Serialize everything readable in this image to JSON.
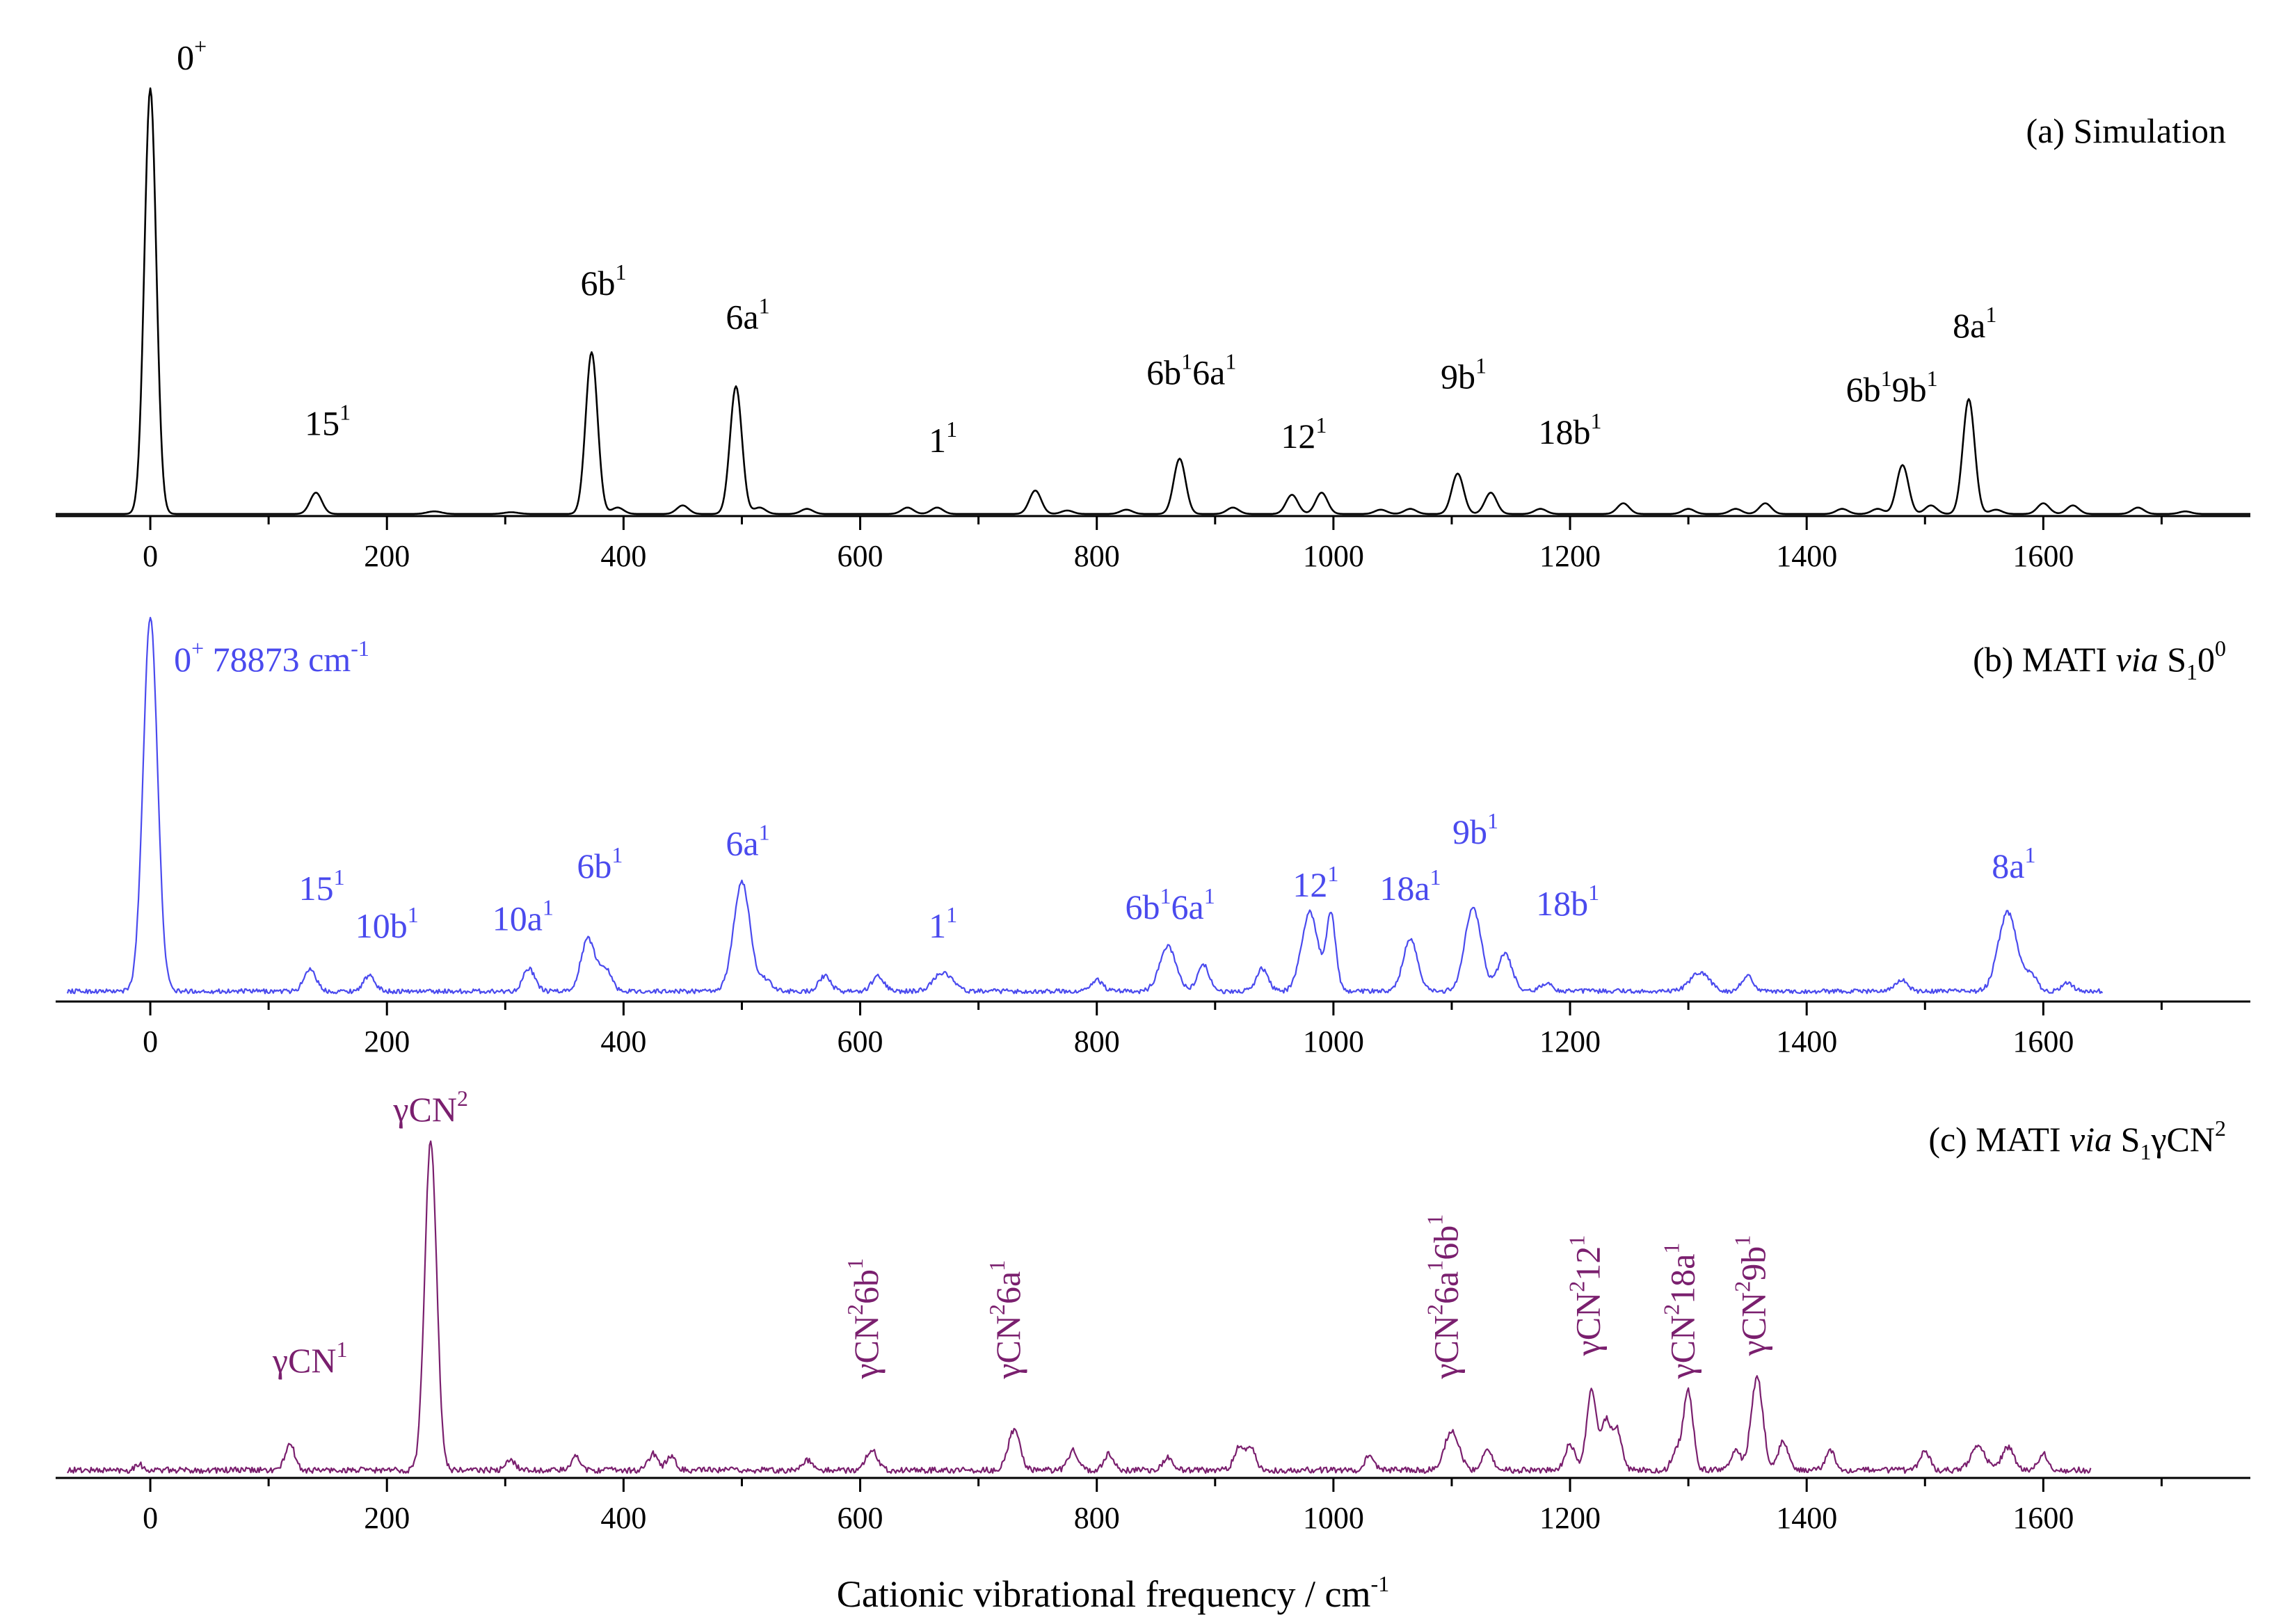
{
  "figure": {
    "xlabel": "Cationic vibrational frequency / cm",
    "xlabel_sup": "-1"
  },
  "chart_data": [
    {
      "type": "line",
      "id": "a",
      "title": [
        {
          "t": "(a) Simulation"
        }
      ],
      "color": "#000000",
      "xlim": [
        -80,
        1775
      ],
      "ylim": [
        0,
        1.0
      ],
      "xticks": [
        0,
        200,
        400,
        600,
        800,
        1000,
        1200,
        1400,
        1600
      ],
      "x_range": [
        -80,
        1775
      ],
      "baseline": 0.005,
      "noise": 0,
      "peaks": [
        [
          0,
          1.0,
          5
        ],
        [
          140,
          0.05,
          5
        ],
        [
          240,
          0.006,
          6
        ],
        [
          305,
          0.004,
          6
        ],
        [
          373,
          0.38,
          5
        ],
        [
          395,
          0.015,
          5
        ],
        [
          450,
          0.02,
          5
        ],
        [
          495,
          0.3,
          5
        ],
        [
          515,
          0.015,
          5
        ],
        [
          555,
          0.012,
          5
        ],
        [
          640,
          0.015,
          5
        ],
        [
          665,
          0.015,
          5
        ],
        [
          748,
          0.055,
          5
        ],
        [
          775,
          0.008,
          5
        ],
        [
          825,
          0.01,
          5
        ],
        [
          870,
          0.13,
          5
        ],
        [
          915,
          0.015,
          5
        ],
        [
          965,
          0.045,
          5
        ],
        [
          990,
          0.05,
          5
        ],
        [
          1040,
          0.01,
          5
        ],
        [
          1065,
          0.012,
          5
        ],
        [
          1105,
          0.095,
          5
        ],
        [
          1133,
          0.05,
          5
        ],
        [
          1175,
          0.012,
          5
        ],
        [
          1245,
          0.025,
          5
        ],
        [
          1300,
          0.012,
          5
        ],
        [
          1340,
          0.012,
          5
        ],
        [
          1365,
          0.025,
          5
        ],
        [
          1430,
          0.012,
          5
        ],
        [
          1460,
          0.012,
          5
        ],
        [
          1481,
          0.115,
          5
        ],
        [
          1505,
          0.02,
          5
        ],
        [
          1537,
          0.27,
          5
        ],
        [
          1560,
          0.01,
          5
        ],
        [
          1600,
          0.025,
          5
        ],
        [
          1625,
          0.02,
          5
        ],
        [
          1680,
          0.015,
          5
        ],
        [
          1720,
          0.006,
          5
        ]
      ],
      "labels": [
        {
          "x": 35,
          "y": 1.05,
          "parts": [
            {
              "t": "0"
            },
            {
              "t": "+",
              "s": "sup"
            }
          ]
        },
        {
          "x": 150,
          "y": 0.19,
          "parts": [
            {
              "t": "15"
            },
            {
              "t": "1",
              "s": "sup"
            }
          ]
        },
        {
          "x": 383,
          "y": 0.52,
          "parts": [
            {
              "t": "6b"
            },
            {
              "t": "1",
              "s": "sup"
            }
          ]
        },
        {
          "x": 505,
          "y": 0.44,
          "parts": [
            {
              "t": "6a"
            },
            {
              "t": "1",
              "s": "sup"
            }
          ]
        },
        {
          "x": 670,
          "y": 0.15,
          "parts": [
            {
              "t": "1"
            },
            {
              "t": "1",
              "s": "sup"
            }
          ]
        },
        {
          "x": 880,
          "y": 0.31,
          "parts": [
            {
              "t": "6b"
            },
            {
              "t": "1",
              "s": "sup"
            },
            {
              "t": "6a"
            },
            {
              "t": "1",
              "s": "sup"
            }
          ]
        },
        {
          "x": 975,
          "y": 0.16,
          "parts": [
            {
              "t": "12"
            },
            {
              "t": "1",
              "s": "sup"
            }
          ]
        },
        {
          "x": 1110,
          "y": 0.3,
          "parts": [
            {
              "t": "9b"
            },
            {
              "t": "1",
              "s": "sup"
            }
          ]
        },
        {
          "x": 1200,
          "y": 0.17,
          "parts": [
            {
              "t": "18b"
            },
            {
              "t": "1",
              "s": "sup"
            }
          ]
        },
        {
          "x": 1472,
          "y": 0.27,
          "parts": [
            {
              "t": "6b"
            },
            {
              "t": "1",
              "s": "sup"
            },
            {
              "t": "9b"
            },
            {
              "t": "1",
              "s": "sup"
            }
          ]
        },
        {
          "x": 1542,
          "y": 0.42,
          "parts": [
            {
              "t": "8a"
            },
            {
              "t": "1",
              "s": "sup"
            }
          ]
        }
      ]
    },
    {
      "type": "line",
      "id": "b",
      "title": [
        {
          "t": "(b) MATI "
        },
        {
          "t": "via",
          "s": "it"
        },
        {
          "t": " S"
        },
        {
          "t": "1",
          "s": "sub"
        },
        {
          "t": "0"
        },
        {
          "t": "0",
          "s": "sup"
        }
      ],
      "color": "#4a4aee",
      "xlim": [
        -80,
        1775
      ],
      "ylim": [
        0,
        1.0
      ],
      "xticks": [
        0,
        200,
        400,
        600,
        800,
        1000,
        1200,
        1400,
        1600
      ],
      "x_range": [
        -70,
        1650
      ],
      "baseline": 0.025,
      "noise": 0.012,
      "peaks": [
        [
          0,
          1.0,
          6
        ],
        [
          135,
          0.06,
          5
        ],
        [
          185,
          0.04,
          5
        ],
        [
          320,
          0.06,
          5
        ],
        [
          370,
          0.14,
          6
        ],
        [
          385,
          0.06,
          5
        ],
        [
          500,
          0.29,
          7
        ],
        [
          520,
          0.03,
          5
        ],
        [
          570,
          0.04,
          5
        ],
        [
          615,
          0.04,
          5
        ],
        [
          670,
          0.05,
          8
        ],
        [
          800,
          0.03,
          5
        ],
        [
          860,
          0.12,
          7
        ],
        [
          890,
          0.07,
          5
        ],
        [
          940,
          0.06,
          5
        ],
        [
          980,
          0.21,
          7
        ],
        [
          998,
          0.2,
          4
        ],
        [
          1065,
          0.14,
          6
        ],
        [
          1118,
          0.22,
          7
        ],
        [
          1145,
          0.1,
          6
        ],
        [
          1180,
          0.02,
          5
        ],
        [
          1310,
          0.05,
          8
        ],
        [
          1350,
          0.04,
          5
        ],
        [
          1480,
          0.03,
          5
        ],
        [
          1570,
          0.21,
          8
        ],
        [
          1590,
          0.04,
          5
        ],
        [
          1620,
          0.02,
          5
        ]
      ],
      "labels": [
        {
          "x": 20,
          "y": 0.88,
          "anchor": "start",
          "parts": [
            {
              "t": "0"
            },
            {
              "t": "+",
              "s": "sup"
            },
            {
              "t": "  78873 cm"
            },
            {
              "t": "-1",
              "s": "sup"
            }
          ]
        },
        {
          "x": 145,
          "y": 0.27,
          "parts": [
            {
              "t": "15"
            },
            {
              "t": "1",
              "s": "sup"
            }
          ]
        },
        {
          "x": 200,
          "y": 0.17,
          "parts": [
            {
              "t": "10b"
            },
            {
              "t": "1",
              "s": "sup"
            }
          ]
        },
        {
          "x": 315,
          "y": 0.19,
          "parts": [
            {
              "t": "10a"
            },
            {
              "t": "1",
              "s": "sup"
            }
          ]
        },
        {
          "x": 380,
          "y": 0.33,
          "parts": [
            {
              "t": "6b"
            },
            {
              "t": "1",
              "s": "sup"
            }
          ]
        },
        {
          "x": 505,
          "y": 0.39,
          "parts": [
            {
              "t": "6a"
            },
            {
              "t": "1",
              "s": "sup"
            }
          ]
        },
        {
          "x": 670,
          "y": 0.17,
          "parts": [
            {
              "t": "1"
            },
            {
              "t": "1",
              "s": "sup"
            }
          ]
        },
        {
          "x": 862,
          "y": 0.22,
          "parts": [
            {
              "t": "6b"
            },
            {
              "t": "1",
              "s": "sup"
            },
            {
              "t": "6a"
            },
            {
              "t": "1",
              "s": "sup"
            }
          ]
        },
        {
          "x": 985,
          "y": 0.28,
          "parts": [
            {
              "t": "12"
            },
            {
              "t": "1",
              "s": "sup"
            }
          ]
        },
        {
          "x": 1065,
          "y": 0.27,
          "parts": [
            {
              "t": "18a"
            },
            {
              "t": "1",
              "s": "sup"
            }
          ]
        },
        {
          "x": 1120,
          "y": 0.42,
          "parts": [
            {
              "t": "9b"
            },
            {
              "t": "1",
              "s": "sup"
            }
          ]
        },
        {
          "x": 1198,
          "y": 0.23,
          "parts": [
            {
              "t": "18b"
            },
            {
              "t": "1",
              "s": "sup"
            }
          ]
        },
        {
          "x": 1575,
          "y": 0.33,
          "parts": [
            {
              "t": "8a"
            },
            {
              "t": "1",
              "s": "sup"
            }
          ]
        }
      ]
    },
    {
      "type": "line",
      "id": "c",
      "title": [
        {
          "t": "(c) MATI "
        },
        {
          "t": "via",
          "s": "it"
        },
        {
          "t": " S"
        },
        {
          "t": "1",
          "s": "sub"
        },
        {
          "t": "γCN"
        },
        {
          "t": "2",
          "s": "sup"
        }
      ],
      "color": "#7a1f6e",
      "xlim": [
        -80,
        1775
      ],
      "ylim": [
        0,
        1.0
      ],
      "xticks": [
        0,
        200,
        400,
        600,
        800,
        1000,
        1200,
        1400,
        1600
      ],
      "x_range": [
        -70,
        1640
      ],
      "baseline": 0.02,
      "noise": 0.018,
      "peaks": [
        [
          -10,
          0.02,
          3
        ],
        [
          118,
          0.08,
          4
        ],
        [
          237,
          1.0,
          5
        ],
        [
          305,
          0.03,
          4
        ],
        [
          360,
          0.04,
          4
        ],
        [
          425,
          0.05,
          4
        ],
        [
          440,
          0.04,
          4
        ],
        [
          555,
          0.03,
          4
        ],
        [
          610,
          0.06,
          5
        ],
        [
          730,
          0.12,
          5
        ],
        [
          780,
          0.06,
          4
        ],
        [
          810,
          0.05,
          4
        ],
        [
          860,
          0.04,
          4
        ],
        [
          920,
          0.07,
          4
        ],
        [
          930,
          0.07,
          4
        ],
        [
          1030,
          0.04,
          4
        ],
        [
          1100,
          0.12,
          6
        ],
        [
          1130,
          0.07,
          4
        ],
        [
          1200,
          0.08,
          4
        ],
        [
          1218,
          0.24,
          4
        ],
        [
          1230,
          0.15,
          4
        ],
        [
          1240,
          0.12,
          4
        ],
        [
          1290,
          0.06,
          4
        ],
        [
          1300,
          0.24,
          4
        ],
        [
          1340,
          0.06,
          4
        ],
        [
          1358,
          0.28,
          5
        ],
        [
          1380,
          0.09,
          4
        ],
        [
          1420,
          0.06,
          4
        ],
        [
          1500,
          0.06,
          4
        ],
        [
          1545,
          0.07,
          6
        ],
        [
          1570,
          0.07,
          5
        ],
        [
          1600,
          0.05,
          4
        ]
      ],
      "labels": [
        {
          "x": 135,
          "y": 0.32,
          "parts": [
            {
              "t": "γCN"
            },
            {
              "t": "1",
              "s": "sup"
            }
          ]
        },
        {
          "x": 237,
          "y": 1.08,
          "parts": [
            {
              "t": "γCN"
            },
            {
              "t": "2",
              "s": "sup"
            }
          ]
        }
      ],
      "vlabels": [
        {
          "x": 615,
          "y": 0.3,
          "parts": [
            {
              "t": "γCN"
            },
            {
              "t": "2",
              "s": "sup"
            },
            {
              "t": "6b"
            },
            {
              "t": "1",
              "s": "sup"
            }
          ]
        },
        {
          "x": 735,
          "y": 0.3,
          "parts": [
            {
              "t": "γCN"
            },
            {
              "t": "2",
              "s": "sup"
            },
            {
              "t": "6a"
            },
            {
              "t": "1",
              "s": "sup"
            }
          ]
        },
        {
          "x": 1105,
          "y": 0.3,
          "parts": [
            {
              "t": "γCN"
            },
            {
              "t": "2",
              "s": "sup"
            },
            {
              "t": "6a"
            },
            {
              "t": "1",
              "s": "sup"
            },
            {
              "t": "6b"
            },
            {
              "t": "1",
              "s": "sup"
            }
          ]
        },
        {
          "x": 1225,
          "y": 0.37,
          "parts": [
            {
              "t": "γCN"
            },
            {
              "t": "2",
              "s": "sup"
            },
            {
              "t": "12"
            },
            {
              "t": "1",
              "s": "sup"
            }
          ]
        },
        {
          "x": 1305,
          "y": 0.3,
          "parts": [
            {
              "t": "γCN"
            },
            {
              "t": "2",
              "s": "sup"
            },
            {
              "t": "18a"
            },
            {
              "t": "1",
              "s": "sup"
            }
          ]
        },
        {
          "x": 1365,
          "y": 0.37,
          "parts": [
            {
              "t": "γCN"
            },
            {
              "t": "2",
              "s": "sup"
            },
            {
              "t": "9b"
            },
            {
              "t": "1",
              "s": "sup"
            }
          ]
        }
      ]
    }
  ]
}
